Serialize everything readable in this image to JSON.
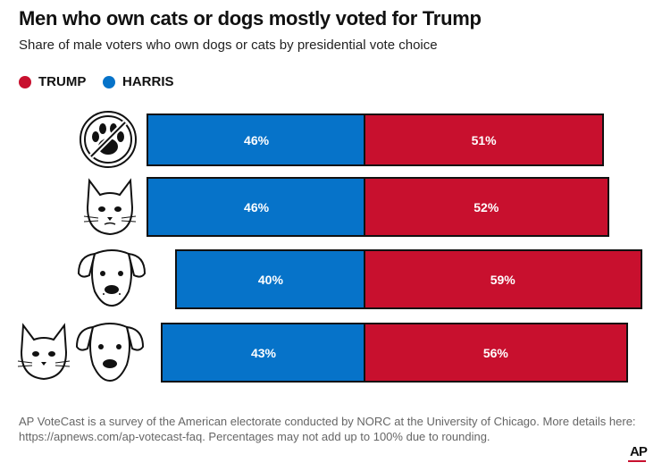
{
  "colors": {
    "trump": "#c8102e",
    "harris": "#0673c9"
  },
  "chart_data": {
    "type": "bar",
    "orientation": "horizontal-diverging",
    "title": "Men who own cats or dogs mostly voted for Trump",
    "subtitle": "Share of male voters who own dogs or cats by presidential vote choice",
    "legend": [
      "TRUMP",
      "HARRIS"
    ],
    "categories": [
      "No pets",
      "Cat",
      "Dog",
      "Cat and dog"
    ],
    "category_icons": [
      "no-pets-icon",
      "cat-icon",
      "dog-icon",
      "cat-and-dog-icon"
    ],
    "series": [
      {
        "name": "HARRIS",
        "values": [
          46,
          46,
          40,
          43
        ],
        "labels": [
          "46%",
          "46%",
          "40%",
          "43%"
        ]
      },
      {
        "name": "TRUMP",
        "values": [
          51,
          52,
          59,
          56
        ],
        "labels": [
          "51%",
          "52%",
          "59%",
          "56%"
        ]
      }
    ]
  },
  "footer": {
    "note": "AP VoteCast is a survey of the American electorate conducted by NORC at the University of Chicago. More details here: https://apnews.com/ap-votecast-faq. Percentages may not add up to 100% due to rounding.",
    "logo": "AP"
  }
}
